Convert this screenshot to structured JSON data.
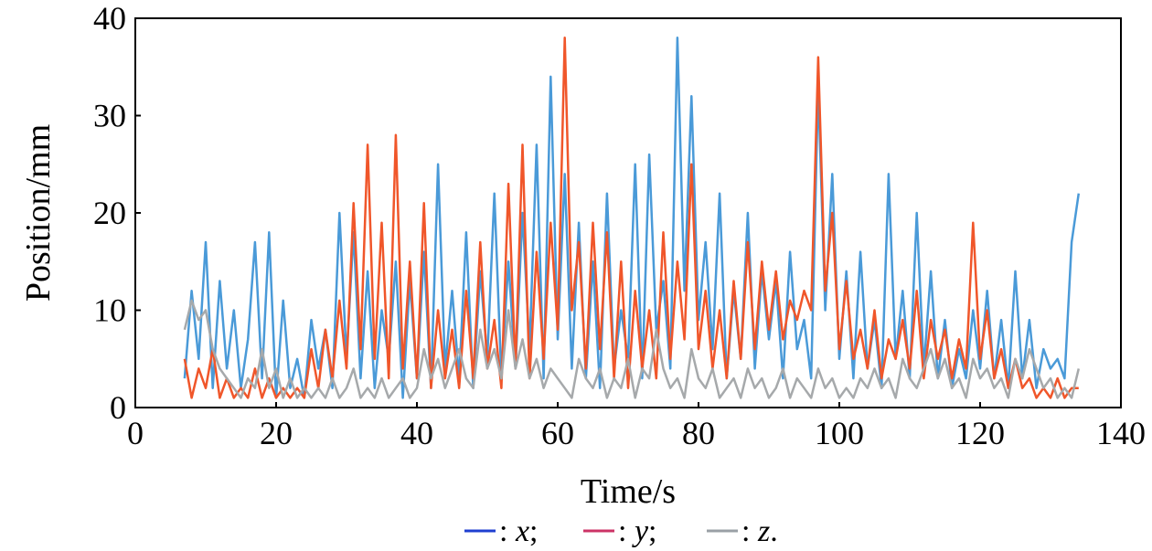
{
  "chart_data": {
    "type": "line",
    "xlabel": "Time/s",
    "ylabel": "Position/mm",
    "xlim": [
      0,
      140
    ],
    "ylim": [
      0,
      40
    ],
    "xticks": [
      "0",
      "20",
      "40",
      "60",
      "80",
      "100",
      "120",
      "140"
    ],
    "yticks": [
      "0",
      "10",
      "20",
      "30",
      "40"
    ],
    "grid": false,
    "legend_position": "bottom",
    "legend": [
      {
        "prefix": "—: ",
        "var": "x",
        "suffix": ";",
        "color": "#1f3fd0"
      },
      {
        "prefix": "—: ",
        "var": "y",
        "suffix": ";",
        "color": "#cc3366"
      },
      {
        "prefix": "—: ",
        "var": "z",
        "suffix": ".",
        "color": "#9aa0a6"
      }
    ],
    "series": [
      {
        "var": "x",
        "color": "#4a9ad8",
        "x": [
          7,
          8,
          9,
          10,
          11,
          12,
          13,
          14,
          15,
          16,
          17,
          18,
          19,
          20,
          21,
          22,
          23,
          24,
          25,
          26,
          27,
          28,
          29,
          30,
          31,
          32,
          33,
          34,
          35,
          36,
          37,
          38,
          39,
          40,
          41,
          42,
          43,
          44,
          45,
          46,
          47,
          48,
          49,
          50,
          51,
          52,
          53,
          54,
          55,
          56,
          57,
          58,
          59,
          60,
          61,
          62,
          63,
          64,
          65,
          66,
          67,
          68,
          69,
          70,
          71,
          72,
          73,
          74,
          75,
          76,
          77,
          78,
          79,
          80,
          81,
          82,
          83,
          84,
          85,
          86,
          87,
          88,
          89,
          90,
          91,
          92,
          93,
          94,
          95,
          96,
          97,
          98,
          99,
          100,
          101,
          102,
          103,
          104,
          105,
          106,
          107,
          108,
          109,
          110,
          111,
          112,
          113,
          114,
          115,
          116,
          117,
          118,
          119,
          120,
          121,
          122,
          123,
          124,
          125,
          126,
          127,
          128,
          129,
          130,
          131,
          132,
          133,
          134
        ],
        "y": [
          3,
          12,
          5,
          17,
          2,
          13,
          4,
          10,
          2,
          7,
          17,
          3,
          18,
          1,
          11,
          2,
          5,
          1,
          9,
          4,
          8,
          2,
          20,
          5,
          18,
          3,
          14,
          2,
          10,
          5,
          15,
          1,
          13,
          3,
          16,
          2,
          25,
          4,
          12,
          3,
          18,
          2,
          14,
          5,
          22,
          3,
          15,
          4,
          20,
          6,
          27,
          3,
          34,
          7,
          24,
          4,
          19,
          3,
          15,
          2,
          22,
          4,
          10,
          5,
          25,
          3,
          26,
          8,
          13,
          4,
          38,
          12,
          32,
          9,
          17,
          6,
          22,
          3,
          12,
          5,
          20,
          4,
          14,
          7,
          13,
          3,
          16,
          6,
          9,
          3,
          33,
          10,
          24,
          5,
          14,
          3,
          16,
          4,
          9,
          2,
          24,
          5,
          12,
          3,
          20,
          4,
          14,
          3,
          9,
          2,
          6,
          3,
          10,
          4,
          12,
          3,
          9,
          2,
          14,
          3,
          9,
          2,
          6,
          4,
          5,
          3,
          17,
          22
        ]
      },
      {
        "var": "y",
        "color": "#f0562a",
        "x": [
          7,
          8,
          9,
          10,
          11,
          12,
          13,
          14,
          15,
          16,
          17,
          18,
          19,
          20,
          21,
          22,
          23,
          24,
          25,
          26,
          27,
          28,
          29,
          30,
          31,
          32,
          33,
          34,
          35,
          36,
          37,
          38,
          39,
          40,
          41,
          42,
          43,
          44,
          45,
          46,
          47,
          48,
          49,
          50,
          51,
          52,
          53,
          54,
          55,
          56,
          57,
          58,
          59,
          60,
          61,
          62,
          63,
          64,
          65,
          66,
          67,
          68,
          69,
          70,
          71,
          72,
          73,
          74,
          75,
          76,
          77,
          78,
          79,
          80,
          81,
          82,
          83,
          84,
          85,
          86,
          87,
          88,
          89,
          90,
          91,
          92,
          93,
          94,
          95,
          96,
          97,
          98,
          99,
          100,
          101,
          102,
          103,
          104,
          105,
          106,
          107,
          108,
          109,
          110,
          111,
          112,
          113,
          114,
          115,
          116,
          117,
          118,
          119,
          120,
          121,
          122,
          123,
          124,
          125,
          126,
          127,
          128,
          129,
          130,
          131,
          132,
          133,
          134
        ],
        "y": [
          5,
          1,
          4,
          2,
          6,
          1,
          3,
          1,
          2,
          1,
          4,
          1,
          3,
          1,
          2,
          1,
          2,
          1,
          6,
          2,
          8,
          3,
          11,
          4,
          21,
          6,
          27,
          5,
          19,
          3,
          28,
          4,
          15,
          3,
          21,
          2,
          10,
          3,
          8,
          2,
          12,
          3,
          17,
          4,
          9,
          2,
          23,
          4,
          27,
          3,
          16,
          5,
          19,
          8,
          38,
          10,
          17,
          4,
          19,
          6,
          18,
          3,
          15,
          2,
          12,
          4,
          10,
          3,
          18,
          5,
          15,
          7,
          25,
          6,
          12,
          4,
          10,
          3,
          13,
          5,
          17,
          6,
          15,
          8,
          14,
          7,
          11,
          9,
          12,
          10,
          36,
          12,
          20,
          6,
          13,
          5,
          8,
          4,
          10,
          3,
          7,
          5,
          9,
          4,
          12,
          3,
          9,
          5,
          8,
          3,
          7,
          4,
          19,
          5,
          10,
          3,
          6,
          2,
          5,
          2,
          3,
          1,
          2,
          1,
          3,
          1,
          2,
          2
        ]
      },
      {
        "var": "z",
        "color": "#a6a9ab",
        "x": [
          7,
          8,
          9,
          10,
          11,
          12,
          13,
          14,
          15,
          16,
          17,
          18,
          19,
          20,
          21,
          22,
          23,
          24,
          25,
          26,
          27,
          28,
          29,
          30,
          31,
          32,
          33,
          34,
          35,
          36,
          37,
          38,
          39,
          40,
          41,
          42,
          43,
          44,
          45,
          46,
          47,
          48,
          49,
          50,
          51,
          52,
          53,
          54,
          55,
          56,
          57,
          58,
          59,
          60,
          61,
          62,
          63,
          64,
          65,
          66,
          67,
          68,
          69,
          70,
          71,
          72,
          73,
          74,
          75,
          76,
          77,
          78,
          79,
          80,
          81,
          82,
          83,
          84,
          85,
          86,
          87,
          88,
          89,
          90,
          91,
          92,
          93,
          94,
          95,
          96,
          97,
          98,
          99,
          100,
          101,
          102,
          103,
          104,
          105,
          106,
          107,
          108,
          109,
          110,
          111,
          112,
          113,
          114,
          115,
          116,
          117,
          118,
          119,
          120,
          121,
          122,
          123,
          124,
          125,
          126,
          127,
          128,
          129,
          130,
          131,
          132,
          133,
          134
        ],
        "y": [
          8,
          11,
          9,
          10,
          6,
          4,
          3,
          2,
          1,
          3,
          2,
          6,
          2,
          4,
          1,
          3,
          1,
          2,
          1,
          2,
          1,
          3,
          1,
          2,
          4,
          1,
          2,
          1,
          3,
          1,
          2,
          3,
          1,
          2,
          6,
          3,
          5,
          2,
          4,
          6,
          3,
          2,
          8,
          4,
          6,
          3,
          10,
          4,
          7,
          3,
          5,
          2,
          4,
          3,
          2,
          1,
          5,
          3,
          2,
          4,
          1,
          3,
          2,
          5,
          1,
          4,
          3,
          8,
          4,
          2,
          3,
          1,
          6,
          3,
          2,
          4,
          1,
          2,
          3,
          1,
          4,
          2,
          3,
          1,
          2,
          4,
          1,
          3,
          2,
          1,
          4,
          2,
          3,
          1,
          2,
          1,
          3,
          2,
          4,
          2,
          3,
          1,
          5,
          3,
          2,
          4,
          6,
          3,
          5,
          2,
          3,
          1,
          5,
          3,
          4,
          2,
          3,
          1,
          5,
          3,
          6,
          4,
          2,
          3,
          1,
          2,
          1,
          4
        ]
      }
    ]
  }
}
